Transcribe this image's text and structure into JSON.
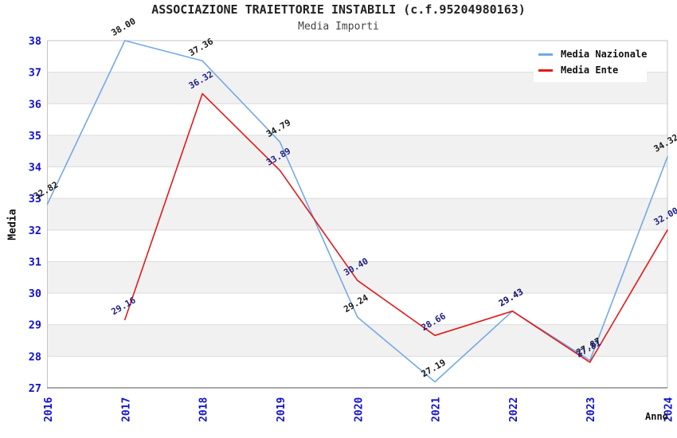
{
  "page": {
    "background": "#ffffff"
  },
  "chart_data": {
    "type": "line",
    "title": "ASSOCIAZIONE TRAIETTORIE INSTABILI (c.f.95204980163)",
    "subtitle": "Media Importi",
    "xlabel": "Anno",
    "ylabel": "Media",
    "x": [
      "2016",
      "2017",
      "2018",
      "2019",
      "2020",
      "2021",
      "2022",
      "2023",
      "2024"
    ],
    "ylim": [
      27,
      38
    ],
    "ytick_step": 1,
    "grid": "horizontal-gridlines-with-alternating-bands",
    "band_color": "#f1f1f1",
    "gridline_color": "#dcdcdc",
    "plot_border_color": "#c4c4c4",
    "axis_line_color": "#8c8c8c",
    "tick_label_color": "#1111cc",
    "legend_position": "top-right",
    "series": [
      {
        "name": "Media Nazionale",
        "color": "#74a9e4",
        "label_color": "#1a1a1a",
        "values": [
          32.82,
          38.0,
          37.36,
          34.79,
          29.24,
          27.19,
          29.43,
          27.87,
          34.32
        ]
      },
      {
        "name": "Media Ente",
        "color": "#e11b1b",
        "label_color": "#1f1f85",
        "values": [
          null,
          29.16,
          36.32,
          33.89,
          30.4,
          28.66,
          29.43,
          27.81,
          32.0
        ]
      }
    ]
  }
}
